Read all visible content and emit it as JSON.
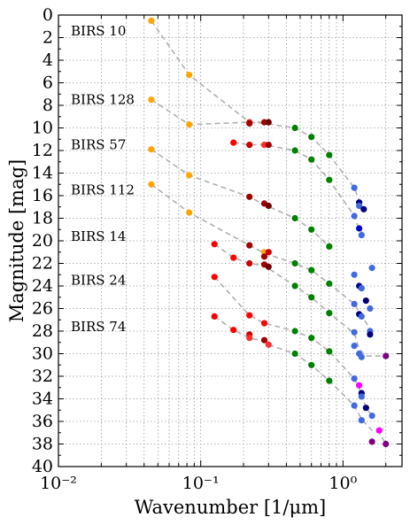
{
  "chart_data": {
    "type": "scatter",
    "xlabel": "Wavenumber [1/μm]",
    "ylabel": "Magnitude [mag]",
    "xscale": "log",
    "xlim": [
      0.01,
      2.6
    ],
    "ylim": [
      40,
      0
    ],
    "y_inverted": true,
    "grid": true,
    "x_ticks": [
      {
        "value": 0.01,
        "label": "10⁻²"
      },
      {
        "value": 0.1,
        "label": "10⁻¹"
      },
      {
        "value": 1,
        "label": "10⁰"
      }
    ],
    "y_ticks": [
      0,
      2,
      4,
      6,
      8,
      10,
      12,
      14,
      16,
      18,
      20,
      22,
      24,
      26,
      28,
      30,
      32,
      34,
      36,
      38,
      40
    ],
    "stars": [
      {
        "name": "BIRS 10",
        "label_mag": 1.4,
        "lines": [
          [
            [
              0.045,
              0.5
            ],
            [
              0.083,
              5.3
            ],
            [
              0.22,
              9.5
            ],
            [
              0.28,
              9.5
            ]
          ],
          [
            [
              0.045,
              11.9
            ],
            [
              0.083,
              14.2
            ],
            [
              0.22,
              16.1
            ],
            [
              0.28,
              16.8
            ],
            [
              0.46,
              18.0
            ],
            [
              0.6,
              19.0
            ],
            [
              0.8,
              20.5
            ]
          ]
        ],
        "points": [
          {
            "x": 0.045,
            "y": 0.5,
            "color": "#ffa500"
          },
          {
            "x": 0.083,
            "y": 5.3,
            "color": "#ffa500"
          }
        ]
      },
      {
        "name": "BIRS 128",
        "label_mag": 7.5,
        "lines": [
          [
            [
              0.045,
              7.5
            ],
            [
              0.083,
              9.7
            ],
            [
              0.22,
              9.5
            ],
            [
              0.28,
              9.6
            ],
            [
              0.46,
              10.0
            ],
            [
              0.6,
              10.8
            ],
            [
              0.8,
              12.4
            ],
            [
              1.2,
              15.3
            ],
            [
              1.3,
              16.4
            ],
            [
              1.3,
              16.8
            ],
            [
              1.4,
              17.2
            ]
          ]
        ],
        "points": [
          {
            "x": 0.045,
            "y": 7.5,
            "color": "#ffa500"
          },
          {
            "x": 0.083,
            "y": 9.7,
            "color": "#ffa500"
          },
          {
            "x": 0.22,
            "y": 9.5,
            "color": "#ff2020"
          },
          {
            "x": 0.22,
            "y": 9.6,
            "color": "#a00000"
          },
          {
            "x": 0.28,
            "y": 9.5,
            "color": "#a00000"
          },
          {
            "x": 0.3,
            "y": 9.5,
            "color": "#700000"
          },
          {
            "x": 0.46,
            "y": 10.0,
            "color": "#008000"
          },
          {
            "x": 0.6,
            "y": 10.8,
            "color": "#008000"
          },
          {
            "x": 0.8,
            "y": 12.4,
            "color": "#008000"
          },
          {
            "x": 1.2,
            "y": 15.3,
            "color": "#4169e1"
          },
          {
            "x": 1.3,
            "y": 16.6,
            "color": "#000080"
          },
          {
            "x": 1.3,
            "y": 16.9,
            "color": "#4169e1"
          },
          {
            "x": 1.4,
            "y": 17.2,
            "color": "#000080"
          }
        ]
      },
      {
        "name": "BIRS 57",
        "label_mag": 11.5,
        "lines": [
          [
            [
              0.17,
              11.3
            ],
            [
              0.22,
              11.5
            ],
            [
              0.28,
              11.5
            ],
            [
              0.46,
              12.0
            ],
            [
              0.6,
              12.8
            ],
            [
              0.8,
              14.6
            ],
            [
              1.2,
              17.8
            ],
            [
              1.3,
              19.0
            ],
            [
              1.45,
              19.6
            ]
          ]
        ],
        "points": [
          {
            "x": 0.045,
            "y": 11.9,
            "color": "#ffa500"
          },
          {
            "x": 0.083,
            "y": 14.2,
            "color": "#ffa500"
          },
          {
            "x": 0.17,
            "y": 11.3,
            "color": "#ff0000"
          },
          {
            "x": 0.22,
            "y": 11.5,
            "color": "#cc0000"
          },
          {
            "x": 0.28,
            "y": 11.5,
            "color": "#ff3030"
          },
          {
            "x": 0.3,
            "y": 11.5,
            "color": "#a00000"
          },
          {
            "x": 0.46,
            "y": 12.0,
            "color": "#008000"
          },
          {
            "x": 0.6,
            "y": 12.8,
            "color": "#008000"
          },
          {
            "x": 0.8,
            "y": 14.6,
            "color": "#008000"
          },
          {
            "x": 1.2,
            "y": 17.8,
            "color": "#4169e1"
          },
          {
            "x": 1.3,
            "y": 18.9,
            "color": "#0000cd"
          },
          {
            "x": 1.35,
            "y": 19.5,
            "color": "#4169e1"
          }
        ]
      },
      {
        "name": "BIRS 112",
        "label_mag": 15.5,
        "lines": [
          [
            [
              0.045,
              15.0
            ],
            [
              0.083,
              17.5
            ],
            [
              0.22,
              20.4
            ],
            [
              0.28,
              21.1
            ],
            [
              0.46,
              22.0
            ],
            [
              0.6,
              22.6
            ],
            [
              0.8,
              23.8
            ],
            [
              1.2,
              25.6
            ],
            [
              1.35,
              26.6
            ],
            [
              1.6,
              28.1
            ]
          ]
        ],
        "points": [
          {
            "x": 0.045,
            "y": 15.0,
            "color": "#ffa500"
          },
          {
            "x": 0.083,
            "y": 17.5,
            "color": "#ffa500"
          },
          {
            "x": 0.22,
            "y": 16.1,
            "color": "#a00000"
          },
          {
            "x": 0.28,
            "y": 16.7,
            "color": "#a00000"
          },
          {
            "x": 0.3,
            "y": 16.9,
            "color": "#700000"
          },
          {
            "x": 0.46,
            "y": 18.0,
            "color": "#008000"
          },
          {
            "x": 0.6,
            "y": 19.0,
            "color": "#008000"
          },
          {
            "x": 0.8,
            "y": 20.5,
            "color": "#008000"
          },
          {
            "x": 1.6,
            "y": 22.4,
            "color": "#4169e1"
          }
        ]
      },
      {
        "name": "BIRS 14",
        "label_mag": 19.6,
        "lines": [
          [
            [
              0.125,
              20.3
            ],
            [
              0.17,
              21.5
            ],
            [
              0.22,
              22.0
            ],
            [
              0.28,
              22.2
            ],
            [
              0.46,
              24.0
            ],
            [
              0.6,
              25.0
            ],
            [
              0.8,
              26.4
            ],
            [
              1.2,
              28.2
            ],
            [
              1.3,
              29.6
            ],
            [
              1.45,
              30.2
            ],
            [
              2.0,
              30.2
            ]
          ]
        ],
        "points": [
          {
            "x": 0.125,
            "y": 20.3,
            "color": "#ff0000"
          },
          {
            "x": 0.17,
            "y": 21.5,
            "color": "#ff0000"
          },
          {
            "x": 0.22,
            "y": 20.4,
            "color": "#a00000"
          },
          {
            "x": 0.22,
            "y": 22.0,
            "color": "#cc0000"
          },
          {
            "x": 0.28,
            "y": 21.0,
            "color": "#ffa500"
          },
          {
            "x": 0.28,
            "y": 21.4,
            "color": "#a00000"
          },
          {
            "x": 0.28,
            "y": 22.1,
            "color": "#a00000"
          },
          {
            "x": 0.3,
            "y": 21.0,
            "color": "#cc0000"
          },
          {
            "x": 0.3,
            "y": 22.3,
            "color": "#700000"
          },
          {
            "x": 0.46,
            "y": 22.0,
            "color": "#008000"
          },
          {
            "x": 0.6,
            "y": 22.6,
            "color": "#008000"
          },
          {
            "x": 0.8,
            "y": 23.8,
            "color": "#008000"
          },
          {
            "x": 1.2,
            "y": 23.0,
            "color": "#4169e1"
          },
          {
            "x": 1.3,
            "y": 24.0,
            "color": "#000080"
          },
          {
            "x": 1.35,
            "y": 24.2,
            "color": "#4169e1"
          },
          {
            "x": 1.45,
            "y": 25.3,
            "color": "#000080"
          },
          {
            "x": 1.55,
            "y": 26.0,
            "color": "#4169e1"
          },
          {
            "x": 1.2,
            "y": 25.6,
            "color": "#4169e1"
          },
          {
            "x": 1.3,
            "y": 26.5,
            "color": "#000080"
          },
          {
            "x": 1.35,
            "y": 26.7,
            "color": "#4169e1"
          }
        ]
      },
      {
        "name": "BIRS 24",
        "label_mag": 23.5,
        "lines": [
          [
            [
              0.125,
              23.2
            ],
            [
              0.22,
              26.6
            ],
            [
              0.28,
              27.3
            ],
            [
              0.46,
              28.0
            ],
            [
              0.6,
              28.6
            ],
            [
              0.8,
              29.8
            ],
            [
              1.2,
              32.2
            ],
            [
              1.35,
              33.5
            ],
            [
              1.45,
              34.8
            ],
            [
              1.6,
              35.5
            ]
          ]
        ],
        "points": [
          {
            "x": 0.125,
            "y": 23.2,
            "color": "#ff0000"
          },
          {
            "x": 0.46,
            "y": 24.0,
            "color": "#008000"
          },
          {
            "x": 0.6,
            "y": 25.0,
            "color": "#008000"
          },
          {
            "x": 0.8,
            "y": 26.4,
            "color": "#008000"
          },
          {
            "x": 1.2,
            "y": 28.1,
            "color": "#4169e1"
          },
          {
            "x": 1.55,
            "y": 28.0,
            "color": "#4169e1"
          },
          {
            "x": 1.55,
            "y": 28.3,
            "color": "#000080"
          },
          {
            "x": 1.2,
            "y": 29.3,
            "color": "#4169e1"
          },
          {
            "x": 1.3,
            "y": 30.0,
            "color": "#4169e1"
          },
          {
            "x": 1.35,
            "y": 30.3,
            "color": "#4169e1"
          },
          {
            "x": 2.0,
            "y": 30.2,
            "color": "#800080"
          }
        ]
      },
      {
        "name": "BIRS 74",
        "label_mag": 27.6,
        "lines": [
          [
            [
              0.125,
              26.7
            ],
            [
              0.17,
              27.9
            ],
            [
              0.22,
              28.6
            ],
            [
              0.28,
              28.9
            ],
            [
              0.3,
              29.2
            ],
            [
              0.46,
              30.0
            ],
            [
              0.6,
              31.0
            ],
            [
              0.8,
              32.4
            ],
            [
              1.2,
              34.6
            ],
            [
              1.35,
              35.8
            ],
            [
              1.6,
              36.8
            ],
            [
              1.8,
              37.0
            ],
            [
              2.0,
              38.0
            ]
          ]
        ],
        "points": [
          {
            "x": 0.125,
            "y": 26.7,
            "color": "#ff0000"
          },
          {
            "x": 0.17,
            "y": 27.9,
            "color": "#ff0000"
          },
          {
            "x": 0.22,
            "y": 26.6,
            "color": "#ff0000"
          },
          {
            "x": 0.22,
            "y": 28.3,
            "color": "#cc0000"
          },
          {
            "x": 0.22,
            "y": 28.6,
            "color": "#ff3030"
          },
          {
            "x": 0.28,
            "y": 27.3,
            "color": "#ff0000"
          },
          {
            "x": 0.28,
            "y": 28.8,
            "color": "#a00000"
          },
          {
            "x": 0.3,
            "y": 29.2,
            "color": "#ff3030"
          },
          {
            "x": 0.46,
            "y": 28.0,
            "color": "#008000"
          },
          {
            "x": 0.46,
            "y": 30.0,
            "color": "#008000"
          },
          {
            "x": 0.6,
            "y": 28.6,
            "color": "#008000"
          },
          {
            "x": 0.6,
            "y": 31.0,
            "color": "#008000"
          },
          {
            "x": 0.8,
            "y": 29.8,
            "color": "#008000"
          },
          {
            "x": 0.8,
            "y": 32.4,
            "color": "#008000"
          },
          {
            "x": 1.2,
            "y": 32.2,
            "color": "#4169e1"
          },
          {
            "x": 1.3,
            "y": 32.8,
            "color": "#ff00ff"
          },
          {
            "x": 1.35,
            "y": 33.5,
            "color": "#000080"
          },
          {
            "x": 1.35,
            "y": 33.8,
            "color": "#4169e1"
          },
          {
            "x": 1.45,
            "y": 34.8,
            "color": "#000080"
          },
          {
            "x": 1.2,
            "y": 34.6,
            "color": "#4169e1"
          },
          {
            "x": 1.6,
            "y": 35.5,
            "color": "#4169e1"
          },
          {
            "x": 1.35,
            "y": 35.9,
            "color": "#4169e1"
          },
          {
            "x": 1.8,
            "y": 36.8,
            "color": "#ff00ff"
          },
          {
            "x": 1.6,
            "y": 37.8,
            "color": "#800080"
          },
          {
            "x": 2.0,
            "y": 38.0,
            "color": "#800080"
          }
        ]
      }
    ]
  }
}
